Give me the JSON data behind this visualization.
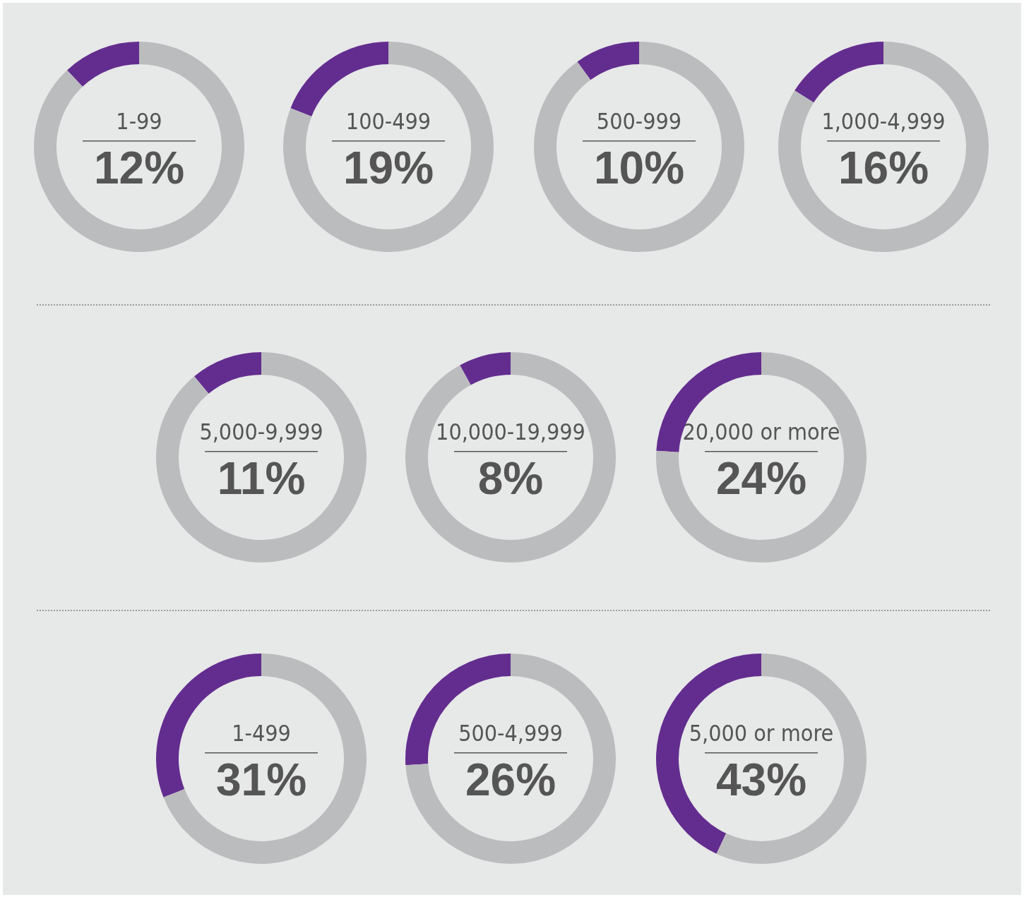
{
  "chart_data": [
    {
      "type": "donut",
      "categories": [
        "1-99",
        null
      ],
      "values": [
        12,
        88
      ],
      "colors": [
        "#632d8f",
        "#bbbcbe"
      ],
      "value_labels": [
        "12%",
        null
      ]
    },
    {
      "type": "donut",
      "categories": [
        "100-499",
        null
      ],
      "values": [
        19,
        81
      ],
      "colors": [
        "#632d8f",
        "#bbbcbe"
      ],
      "value_labels": [
        "19%",
        null
      ]
    },
    {
      "type": "donut",
      "categories": [
        "500-999",
        null
      ],
      "values": [
        10,
        90
      ],
      "colors": [
        "#632d8f",
        "#bbbcbe"
      ],
      "value_labels": [
        "10%",
        null
      ]
    },
    {
      "type": "donut",
      "categories": [
        "1,000-4,999",
        null
      ],
      "values": [
        16,
        84
      ],
      "colors": [
        "#632d8f",
        "#bbbcbe"
      ],
      "value_labels": [
        "16%",
        null
      ]
    },
    {
      "type": "donut",
      "categories": [
        "5,000-9,999",
        null
      ],
      "values": [
        11,
        89
      ],
      "colors": [
        "#632d8f",
        "#bbbcbe"
      ],
      "value_labels": [
        "11%",
        null
      ]
    },
    {
      "type": "donut",
      "categories": [
        "10,000-19,999",
        null
      ],
      "values": [
        8,
        92
      ],
      "colors": [
        "#632d8f",
        "#bbbcbe"
      ],
      "value_labels": [
        "8%",
        null
      ]
    },
    {
      "type": "donut",
      "categories": [
        "20,000 or more",
        null
      ],
      "values": [
        24,
        76
      ],
      "colors": [
        "#632d8f",
        "#bbbcbe"
      ],
      "value_labels": [
        "24%",
        null
      ]
    },
    {
      "type": "donut",
      "categories": [
        "1-499",
        null
      ],
      "values": [
        31,
        69
      ],
      "colors": [
        "#632d8f",
        "#bbbcbe"
      ],
      "value_labels": [
        "31%",
        null
      ]
    },
    {
      "type": "donut",
      "categories": [
        "500-4,999",
        null
      ],
      "values": [
        26,
        74
      ],
      "colors": [
        "#632d8f",
        "#bbbcbe"
      ],
      "value_labels": [
        "26%",
        null
      ]
    },
    {
      "type": "donut",
      "categories": [
        "5,000 or more",
        null
      ],
      "values": [
        43,
        57
      ],
      "colors": [
        "#632d8f",
        "#bbbcbe"
      ],
      "value_labels": [
        "43%",
        null
      ]
    }
  ]
}
